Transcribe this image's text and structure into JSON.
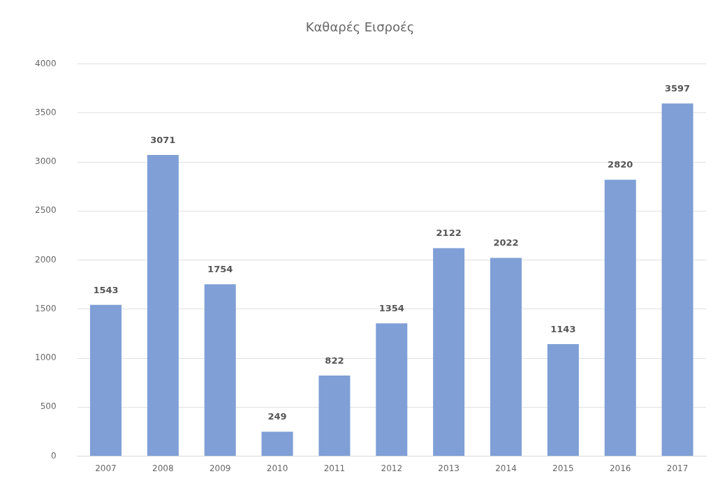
{
  "chart_data": {
    "type": "bar",
    "title": "Καθαρές Εισροές",
    "categories": [
      "2007",
      "2008",
      "2009",
      "2010",
      "2011",
      "2012",
      "2013",
      "2014",
      "2015",
      "2016",
      "2017"
    ],
    "values": [
      1543,
      3071,
      1754,
      249,
      822,
      1354,
      2122,
      2022,
      1143,
      2820,
      3597
    ],
    "color": "#7f9fd6",
    "ylim": [
      0,
      4000
    ],
    "yticks": [
      0,
      500,
      1000,
      1500,
      2000,
      2500,
      3000,
      3500,
      4000
    ],
    "grid": "y",
    "legend": false,
    "data_labels": true
  }
}
